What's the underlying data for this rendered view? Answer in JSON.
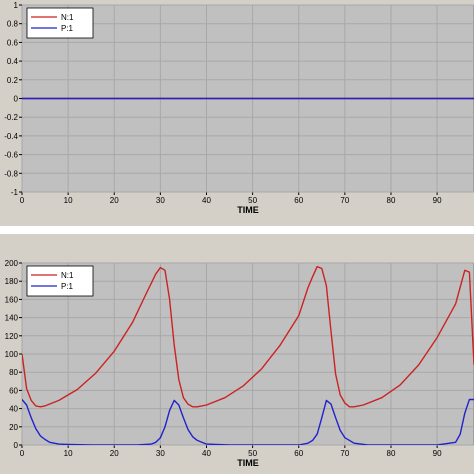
{
  "chart_data": [
    {
      "type": "line",
      "xlabel": "TIME",
      "ylabel": "",
      "xlim": [
        0,
        98
      ],
      "ylim": [
        -1,
        1
      ],
      "x_ticks": [
        0,
        10,
        20,
        30,
        40,
        50,
        60,
        70,
        80,
        90
      ],
      "y_ticks": [
        -1,
        -0.8,
        -0.6,
        -0.4,
        -0.2,
        0,
        0.2,
        0.4,
        0.6,
        0.8,
        1
      ],
      "y_tick_labels": [
        "-1",
        "-0.8",
        "-0.6",
        "-0.4",
        "-0.2",
        "0",
        "0.2",
        "0.4",
        "0.6",
        "0.8",
        "1"
      ],
      "grid": true,
      "legend": "top-left",
      "series": [
        {
          "name": "N:1",
          "color": "#cc2222",
          "x": [
            0,
            10,
            20,
            30,
            40,
            50,
            60,
            70,
            80,
            90,
            98
          ],
          "values": [
            0,
            0,
            0,
            0,
            0,
            0,
            0,
            0,
            0,
            0,
            0
          ]
        },
        {
          "name": "P:1",
          "color": "#2222cc",
          "x": [
            0,
            10,
            20,
            30,
            40,
            50,
            60,
            70,
            80,
            90,
            98
          ],
          "values": [
            0,
            0,
            0,
            0,
            0,
            0,
            0,
            0,
            0,
            0,
            0
          ]
        }
      ]
    },
    {
      "type": "line",
      "xlabel": "TIME",
      "ylabel": "",
      "xlim": [
        0,
        98
      ],
      "ylim": [
        0,
        200
      ],
      "x_ticks": [
        0,
        10,
        20,
        30,
        40,
        50,
        60,
        70,
        80,
        90
      ],
      "y_ticks": [
        0,
        20,
        40,
        60,
        80,
        100,
        120,
        140,
        160,
        180,
        200
      ],
      "y_tick_labels": [
        "0",
        "20",
        "40",
        "60",
        "80",
        "100",
        "120",
        "140",
        "160",
        "180",
        "200"
      ],
      "grid": true,
      "legend": "top-left",
      "series": [
        {
          "name": "N:1",
          "color": "#cc2222",
          "x": [
            0,
            1,
            2,
            3,
            4,
            5,
            8,
            12,
            16,
            20,
            24,
            27,
            29,
            30,
            31,
            32,
            33,
            34,
            35,
            36,
            37,
            38,
            40,
            44,
            48,
            52,
            56,
            60,
            62,
            63,
            64,
            65,
            66,
            67,
            68,
            69,
            70,
            71,
            72,
            74,
            78,
            82,
            86,
            90,
            94,
            96,
            97,
            98
          ],
          "values": [
            100,
            62,
            49,
            43,
            42,
            43,
            49,
            61,
            79,
            103,
            135,
            167,
            188,
            195,
            192,
            160,
            110,
            72,
            52,
            45,
            42,
            42,
            44,
            52,
            65,
            84,
            110,
            142,
            173,
            185,
            196,
            194,
            175,
            125,
            78,
            55,
            46,
            42,
            42,
            44,
            52,
            66,
            88,
            118,
            155,
            192,
            190,
            88
          ]
        },
        {
          "name": "P:1",
          "color": "#2222cc",
          "x": [
            0,
            1,
            2,
            3,
            4,
            5,
            6,
            8,
            10,
            15,
            20,
            25,
            28,
            29,
            30,
            31,
            32,
            33,
            34,
            35,
            36,
            37,
            38,
            40,
            45,
            50,
            55,
            60,
            62,
            63,
            64,
            65,
            66,
            67,
            68,
            69,
            70,
            72,
            75,
            80,
            85,
            90,
            94,
            95,
            96,
            97,
            98
          ],
          "values": [
            50,
            44,
            30,
            18,
            10,
            6,
            3,
            1,
            0.5,
            0,
            0,
            0,
            1,
            3,
            8,
            20,
            38,
            49,
            44,
            30,
            17,
            9,
            5,
            1,
            0,
            0,
            0,
            0,
            2,
            5,
            12,
            30,
            49,
            45,
            30,
            16,
            8,
            2,
            0,
            0,
            0,
            0,
            3,
            12,
            35,
            50,
            50
          ]
        }
      ]
    }
  ]
}
